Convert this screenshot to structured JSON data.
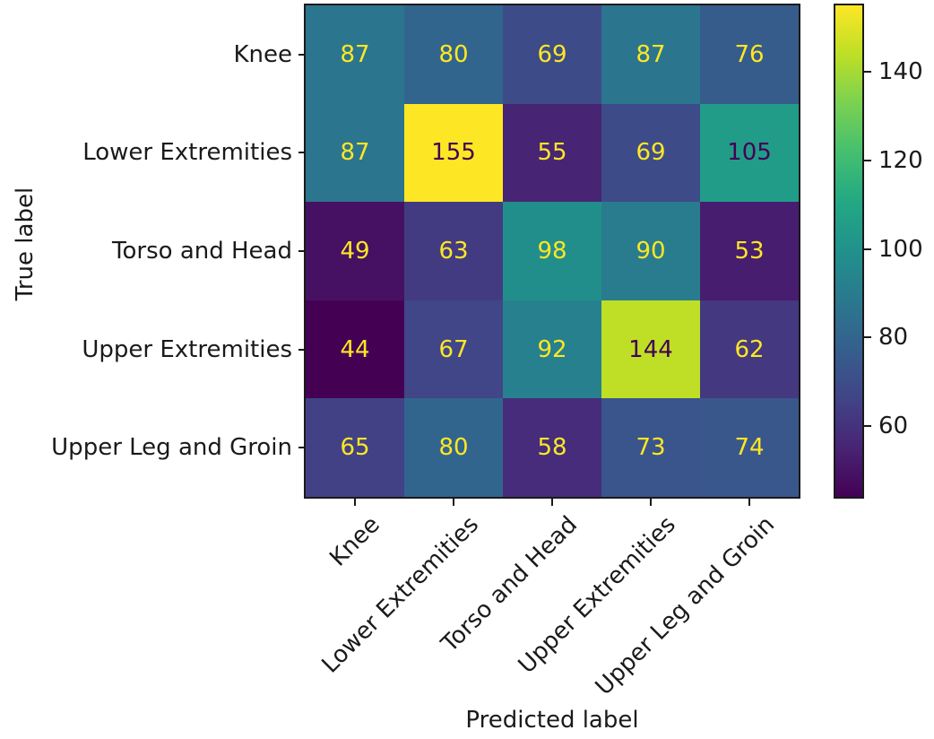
{
  "figure": {
    "background": "#ffffff",
    "text_color": "#1a1a1a"
  },
  "chart_data": {
    "type": "heatmap",
    "title": "",
    "xlabel": "Predicted label",
    "ylabel": "True label",
    "categories": [
      "Knee",
      "Lower Extremities",
      "Torso and Head",
      "Upper Extremities",
      "Upper Leg and Groin"
    ],
    "matrix": [
      [
        87,
        80,
        69,
        87,
        76
      ],
      [
        87,
        155,
        55,
        69,
        105
      ],
      [
        49,
        63,
        98,
        90,
        53
      ],
      [
        44,
        67,
        92,
        144,
        62
      ],
      [
        65,
        80,
        58,
        73,
        74
      ]
    ],
    "vmin": 44,
    "vmax": 155,
    "colormap": "viridis",
    "colormap_stops": [
      "#440154",
      "#482475",
      "#414487",
      "#355f8d",
      "#2a788e",
      "#21918c",
      "#22a884",
      "#44bf70",
      "#7ad151",
      "#bddf26",
      "#fde725"
    ],
    "colorbar_ticks": [
      60,
      80,
      100,
      120,
      140
    ],
    "cell_text_color_low": "#fde725",
    "cell_text_color_high": "#440154",
    "legend_position": "colorbar-right",
    "grid": false
  }
}
